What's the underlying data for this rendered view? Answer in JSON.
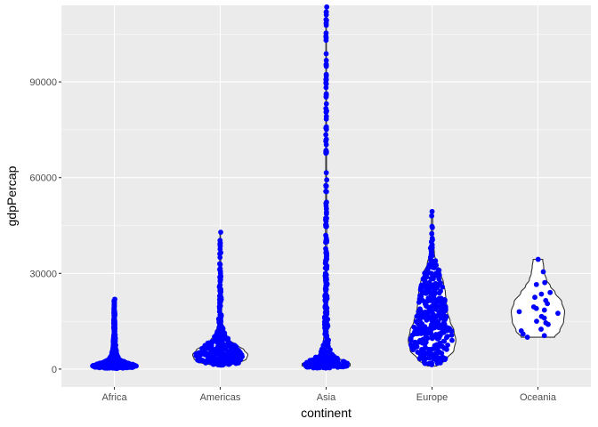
{
  "chart_data": {
    "type": "violin",
    "xlabel": "continent",
    "ylabel": "gdpPercap",
    "categories": [
      "Africa",
      "Americas",
      "Asia",
      "Europe",
      "Oceania"
    ],
    "ylim": [
      -5600,
      114000
    ],
    "yticks": [
      0,
      30000,
      60000,
      90000
    ],
    "ytick_labels": [
      "0",
      "30000",
      "60000",
      "90000"
    ],
    "grid": true,
    "panel_color": "#ebebeb",
    "point_color": "#0000ff",
    "violin_fill": "#ffffff",
    "violin_outline": "#333333",
    "violins": [
      {
        "category": "Africa",
        "min": 240,
        "max": 21900,
        "profile": [
          [
            240,
            0.18
          ],
          [
            600,
            0.45
          ],
          [
            1000,
            0.5
          ],
          [
            1500,
            0.42
          ],
          [
            2200,
            0.25
          ],
          [
            3000,
            0.13
          ],
          [
            4500,
            0.06
          ],
          [
            7000,
            0.03
          ],
          [
            10000,
            0.02
          ],
          [
            14000,
            0.015
          ],
          [
            18000,
            0.01
          ],
          [
            21900,
            0.005
          ]
        ]
      },
      {
        "category": "Americas",
        "min": 1200,
        "max": 42900,
        "profile": [
          [
            1200,
            0.15
          ],
          [
            2000,
            0.42
          ],
          [
            3200,
            0.55
          ],
          [
            4500,
            0.58
          ],
          [
            6000,
            0.5
          ],
          [
            7500,
            0.35
          ],
          [
            9000,
            0.2
          ],
          [
            11000,
            0.1
          ],
          [
            14000,
            0.05
          ],
          [
            18000,
            0.03
          ],
          [
            25000,
            0.02
          ],
          [
            33000,
            0.012
          ],
          [
            42900,
            0.005
          ]
        ]
      },
      {
        "category": "Asia",
        "min": 330,
        "max": 113500,
        "profile": [
          [
            330,
            0.3
          ],
          [
            800,
            0.5
          ],
          [
            1500,
            0.52
          ],
          [
            2500,
            0.4
          ],
          [
            3500,
            0.25
          ],
          [
            5000,
            0.12
          ],
          [
            8000,
            0.06
          ],
          [
            12000,
            0.04
          ],
          [
            20000,
            0.03
          ],
          [
            35000,
            0.015
          ],
          [
            60000,
            0.008
          ],
          [
            90000,
            0.006
          ],
          [
            113500,
            0.005
          ]
        ]
      },
      {
        "category": "Europe",
        "min": 970,
        "max": 49400,
        "profile": [
          [
            970,
            0.1
          ],
          [
            3000,
            0.3
          ],
          [
            6000,
            0.46
          ],
          [
            9000,
            0.5
          ],
          [
            12000,
            0.46
          ],
          [
            15000,
            0.38
          ],
          [
            18000,
            0.32
          ],
          [
            21000,
            0.3
          ],
          [
            24000,
            0.28
          ],
          [
            27000,
            0.24
          ],
          [
            30000,
            0.18
          ],
          [
            33000,
            0.1
          ],
          [
            36000,
            0.05
          ],
          [
            40000,
            0.025
          ],
          [
            45000,
            0.015
          ],
          [
            49400,
            0.01
          ]
        ]
      },
      {
        "category": "Oceania",
        "min": 10000,
        "max": 34400,
        "profile": [
          [
            10000,
            0.35
          ],
          [
            12000,
            0.46
          ],
          [
            15000,
            0.54
          ],
          [
            18000,
            0.56
          ],
          [
            21000,
            0.5
          ],
          [
            24000,
            0.36
          ],
          [
            26000,
            0.26
          ],
          [
            28000,
            0.18
          ],
          [
            30000,
            0.14
          ],
          [
            32000,
            0.12
          ],
          [
            34400,
            0.1
          ]
        ]
      }
    ],
    "points": {
      "Africa": {
        "count": 624,
        "min": 240,
        "max": 21900,
        "outliers": [
          21000,
          21400,
          21900,
          18000,
          17200,
          15000,
          14500,
          13800,
          12600,
          12000,
          11500,
          10900,
          10100,
          9600,
          9000,
          8400,
          8000
        ]
      },
      "Americas": {
        "count": 300,
        "min": 1200,
        "max": 42900,
        "outliers": [
          42900,
          39000,
          36500,
          35000,
          33000,
          31500,
          30000,
          28800,
          27500,
          26000,
          25000,
          24000,
          22900,
          21800,
          20800,
          19800,
          18900,
          18000,
          17000,
          16000,
          15000,
          14000,
          13000,
          12000
        ]
      },
      "Asia": {
        "count": 396,
        "min": 330,
        "max": 113500,
        "outliers": [
          113500,
          109300,
          108400,
          95500,
          80900,
          59300,
          47300,
          40300,
          39700,
          35800,
          34000,
          31500,
          30000,
          28000,
          26500,
          25000,
          23500,
          22000,
          21000,
          20000,
          19000,
          18000,
          17000,
          16000,
          15000,
          14000,
          13000
        ]
      },
      "Europe": {
        "count": 360,
        "min": 970,
        "max": 49400,
        "outliers": [
          49400,
          44700,
          41000,
          40500,
          39000,
          38000,
          37000,
          36500,
          36000,
          35500
        ]
      },
      "Oceania": {
        "values": [
          34400,
          30500,
          27100,
          26500,
          24000,
          23500,
          22500,
          21500,
          20500,
          19500,
          19000,
          18500,
          18000,
          17500,
          16500,
          16000,
          15000,
          14500,
          14000,
          12500,
          12000,
          11000,
          10500,
          10000
        ]
      }
    }
  }
}
